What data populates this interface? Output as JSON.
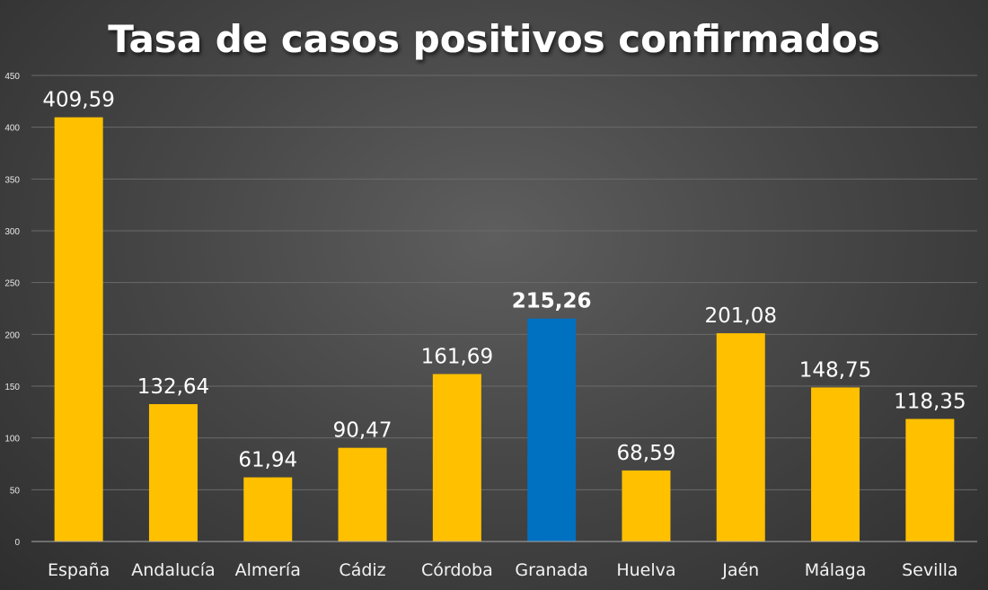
{
  "chart_data": {
    "type": "bar",
    "title": "Tasa de casos positivos confirmados",
    "xlabel": "",
    "ylabel": "",
    "ylim": [
      0,
      450
    ],
    "yticks": [
      "0",
      "50",
      "100",
      "150",
      "200",
      "250",
      "300",
      "350",
      "400",
      "450"
    ],
    "grid": true,
    "categories": [
      "España",
      "Andalucía",
      "Almería",
      "Cádiz",
      "Córdoba",
      "Granada",
      "Huelva",
      "Jaén",
      "Málaga",
      "Sevilla"
    ],
    "values": [
      409.59,
      132.64,
      61.94,
      90.47,
      161.69,
      215.26,
      68.59,
      201.08,
      148.75,
      118.35
    ],
    "data_labels": [
      "409,59",
      "132,64",
      "61,94",
      "90,47",
      "161,69",
      "215,26",
      "68,59",
      "201,08",
      "148,75",
      "118,35"
    ],
    "highlight_category": "Granada",
    "bar_color": "#FFC000",
    "highlight_color": "#0070C0"
  }
}
